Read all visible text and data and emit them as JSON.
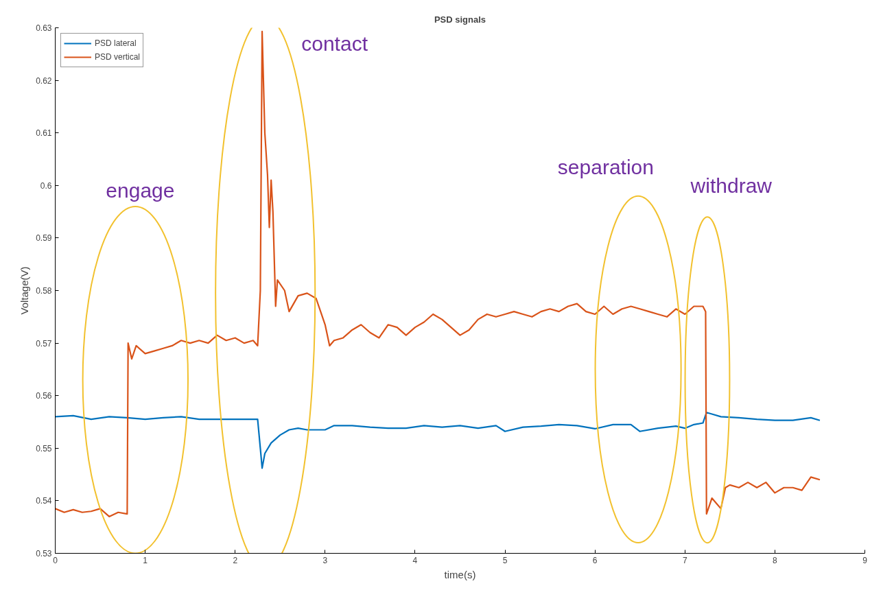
{
  "chart_data": {
    "type": "line",
    "title": "PSD signals",
    "xlabel": "time(s)",
    "ylabel": "Voltage(V)",
    "xlim": [
      0,
      9
    ],
    "xticks": [
      0,
      1,
      2,
      3,
      4,
      5,
      6,
      7,
      8,
      9
    ],
    "ylim": [
      0.53,
      0.63
    ],
    "yticks": [
      0.53,
      0.54,
      0.55,
      0.56,
      0.57,
      0.58,
      0.59,
      0.6,
      0.61,
      0.62,
      0.63
    ],
    "grid": false,
    "legend": "top left",
    "marker": "none",
    "line_style": "solid",
    "series": [
      {
        "name": "PSD lateral",
        "color": "#0072bd",
        "x": [
          0,
          0.2,
          0.4,
          0.6,
          0.8,
          1.0,
          1.2,
          1.4,
          1.6,
          1.8,
          2.0,
          2.2,
          2.25,
          2.28,
          2.3,
          2.33,
          2.4,
          2.5,
          2.6,
          2.7,
          2.8,
          2.9,
          3.0,
          3.1,
          3.3,
          3.5,
          3.7,
          3.9,
          4.1,
          4.3,
          4.5,
          4.7,
          4.9,
          5.0,
          5.2,
          5.4,
          5.6,
          5.8,
          6.0,
          6.2,
          6.4,
          6.5,
          6.7,
          6.9,
          7.0,
          7.1,
          7.2,
          7.24,
          7.3,
          7.4,
          7.6,
          7.8,
          8.0,
          8.2,
          8.4,
          8.5
        ],
        "values": [
          0.556,
          0.5562,
          0.5555,
          0.556,
          0.5558,
          0.5555,
          0.5558,
          0.556,
          0.5555,
          0.5555,
          0.5555,
          0.5555,
          0.5555,
          0.55,
          0.5462,
          0.549,
          0.551,
          0.5525,
          0.5535,
          0.5538,
          0.5535,
          0.5535,
          0.5535,
          0.5543,
          0.5543,
          0.554,
          0.5538,
          0.5538,
          0.5543,
          0.554,
          0.5543,
          0.5538,
          0.5543,
          0.5532,
          0.554,
          0.5542,
          0.5545,
          0.5543,
          0.5537,
          0.5545,
          0.5545,
          0.5532,
          0.5538,
          0.5542,
          0.5538,
          0.5545,
          0.5548,
          0.5568,
          0.5565,
          0.556,
          0.5558,
          0.5555,
          0.5553,
          0.5553,
          0.5558,
          0.5553
        ]
      },
      {
        "name": "PSD vertical",
        "color": "#d95319",
        "x": [
          0,
          0.1,
          0.2,
          0.3,
          0.4,
          0.5,
          0.6,
          0.7,
          0.8,
          0.81,
          0.85,
          0.9,
          1.0,
          1.1,
          1.2,
          1.3,
          1.4,
          1.5,
          1.6,
          1.7,
          1.8,
          1.9,
          2.0,
          2.1,
          2.2,
          2.25,
          2.28,
          2.3,
          2.33,
          2.36,
          2.38,
          2.4,
          2.42,
          2.45,
          2.47,
          2.55,
          2.6,
          2.7,
          2.8,
          2.9,
          2.95,
          3.0,
          3.05,
          3.1,
          3.2,
          3.3,
          3.4,
          3.5,
          3.6,
          3.7,
          3.8,
          3.9,
          4.0,
          4.1,
          4.2,
          4.3,
          4.4,
          4.5,
          4.6,
          4.7,
          4.8,
          4.9,
          5.0,
          5.1,
          5.2,
          5.3,
          5.4,
          5.5,
          5.6,
          5.7,
          5.8,
          5.9,
          6.0,
          6.1,
          6.2,
          6.3,
          6.4,
          6.5,
          6.6,
          6.7,
          6.8,
          6.9,
          7.0,
          7.1,
          7.2,
          7.23,
          7.24,
          7.3,
          7.35,
          7.4,
          7.45,
          7.5,
          7.6,
          7.7,
          7.8,
          7.9,
          8.0,
          8.1,
          8.2,
          8.3,
          8.4,
          8.5
        ],
        "values": [
          0.5385,
          0.5378,
          0.5383,
          0.5378,
          0.538,
          0.5385,
          0.537,
          0.5378,
          0.5375,
          0.57,
          0.567,
          0.5695,
          0.568,
          0.5685,
          0.569,
          0.5695,
          0.5705,
          0.57,
          0.5705,
          0.57,
          0.5715,
          0.5705,
          0.571,
          0.57,
          0.5705,
          0.5695,
          0.58,
          0.6293,
          0.61,
          0.602,
          0.592,
          0.601,
          0.595,
          0.577,
          0.582,
          0.58,
          0.576,
          0.579,
          0.5795,
          0.5785,
          0.576,
          0.5735,
          0.5695,
          0.5705,
          0.571,
          0.5725,
          0.5735,
          0.572,
          0.571,
          0.5735,
          0.573,
          0.5715,
          0.573,
          0.574,
          0.5755,
          0.5745,
          0.573,
          0.5715,
          0.5725,
          0.5745,
          0.5755,
          0.575,
          0.5755,
          0.576,
          0.5755,
          0.575,
          0.576,
          0.5765,
          0.576,
          0.577,
          0.5775,
          0.576,
          0.5755,
          0.577,
          0.5755,
          0.5765,
          0.577,
          0.5765,
          0.576,
          0.5755,
          0.575,
          0.5765,
          0.5755,
          0.577,
          0.577,
          0.576,
          0.5375,
          0.5405,
          0.5395,
          0.5385,
          0.5425,
          0.543,
          0.5425,
          0.5435,
          0.5425,
          0.5435,
          0.5415,
          0.5425,
          0.5425,
          0.542,
          0.5445,
          0.544
        ]
      }
    ],
    "annotations": [
      "engage",
      "contact",
      "separation",
      "withdraw"
    ]
  }
}
